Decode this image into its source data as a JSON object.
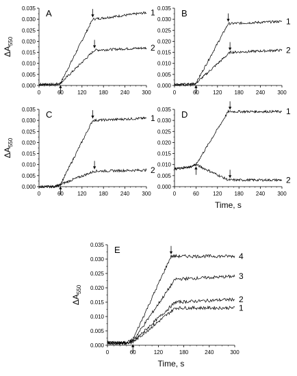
{
  "chart_data": [
    {
      "type": "line",
      "panel": "A",
      "xlim": [
        0,
        300
      ],
      "ylim": [
        0,
        0.035
      ],
      "xticks": [
        0,
        60,
        120,
        180,
        240,
        300
      ],
      "yticks": [
        "0.000",
        "0.005",
        "0.010",
        "0.015",
        "0.020",
        "0.025",
        "0.030",
        "0.035"
      ],
      "xlabel": "",
      "ylabel": "ΔA550",
      "arrows_down": [
        150,
        155
      ],
      "arrows_up": [
        60
      ],
      "series": [
        {
          "name": "1",
          "x": [
            0,
            45,
            60,
            150,
            300
          ],
          "y": [
            0.0005,
            0.0005,
            0.001,
            0.03,
            0.033
          ]
        },
        {
          "name": "2",
          "x": [
            0,
            45,
            60,
            155,
            300
          ],
          "y": [
            0.0005,
            0.0005,
            0.001,
            0.016,
            0.017
          ]
        }
      ]
    },
    {
      "type": "line",
      "panel": "B",
      "xlim": [
        0,
        300
      ],
      "ylim": [
        0,
        0.035
      ],
      "xticks": [
        0,
        60,
        120,
        180,
        240,
        300
      ],
      "yticks": [
        "0.000",
        "0.005",
        "0.010",
        "0.015",
        "0.020",
        "0.025",
        "0.030",
        "0.035"
      ],
      "xlabel": "",
      "ylabel": "",
      "arrows_down": [
        150,
        155
      ],
      "arrows_up": [
        60
      ],
      "series": [
        {
          "name": "1",
          "x": [
            0,
            45,
            60,
            150,
            300
          ],
          "y": [
            0.0005,
            0.0005,
            0.001,
            0.028,
            0.029
          ]
        },
        {
          "name": "2",
          "x": [
            0,
            45,
            60,
            155,
            300
          ],
          "y": [
            0.0005,
            0.0005,
            0.001,
            0.015,
            0.016
          ]
        }
      ]
    },
    {
      "type": "line",
      "panel": "C",
      "xlim": [
        0,
        300
      ],
      "ylim": [
        0,
        0.035
      ],
      "xticks": [
        0,
        60,
        120,
        180,
        240,
        300
      ],
      "yticks": [
        "0.000",
        "0.005",
        "0.010",
        "0.015",
        "0.020",
        "0.025",
        "0.030",
        "0.035"
      ],
      "xlabel": "",
      "ylabel": "ΔA550",
      "arrows_down": [
        150,
        155
      ],
      "arrows_up": [
        60
      ],
      "series": [
        {
          "name": "1",
          "x": [
            0,
            45,
            60,
            150,
            300
          ],
          "y": [
            0.0,
            0.0,
            0.001,
            0.03,
            0.031
          ]
        },
        {
          "name": "2",
          "x": [
            0,
            45,
            60,
            155,
            300
          ],
          "y": [
            0.0,
            0.0,
            0.001,
            0.007,
            0.0075
          ]
        }
      ]
    },
    {
      "type": "line",
      "panel": "D",
      "xlim": [
        0,
        300
      ],
      "ylim": [
        0,
        0.035
      ],
      "xticks": [
        0,
        60,
        120,
        180,
        240,
        300
      ],
      "yticks": [
        "0.000",
        "0.005",
        "0.010",
        "0.015",
        "0.020",
        "0.025",
        "0.030",
        "0.035"
      ],
      "xlabel": "Time, s",
      "ylabel": "",
      "arrows_down": [
        155
      ],
      "arrows_down_lower": [
        155
      ],
      "arrows_up": [
        60
      ],
      "series": [
        {
          "name": "1",
          "x": [
            0,
            45,
            60,
            150,
            300
          ],
          "y": [
            0.008,
            0.009,
            0.01,
            0.034,
            0.034
          ]
        },
        {
          "name": "2",
          "x": [
            0,
            45,
            60,
            150,
            300
          ],
          "y": [
            0.008,
            0.009,
            0.01,
            0.003,
            0.003
          ]
        }
      ]
    },
    {
      "type": "line",
      "panel": "E",
      "xlim": [
        0,
        300
      ],
      "ylim": [
        0,
        0.035
      ],
      "xticks": [
        0,
        60,
        120,
        180,
        240,
        300
      ],
      "yticks": [
        "0.000",
        "0.005",
        "0.010",
        "0.015",
        "0.020",
        "0.025",
        "0.030",
        "0.035"
      ],
      "xlabel": "Time, s",
      "ylabel": "ΔA550",
      "arrows_down": [
        150
      ],
      "arrows_up": [
        60
      ],
      "series": [
        {
          "name": "1",
          "x": [
            0,
            45,
            60,
            160,
            300
          ],
          "y": [
            0.0008,
            0.0008,
            0.001,
            0.013,
            0.013
          ]
        },
        {
          "name": "2",
          "x": [
            0,
            45,
            60,
            160,
            300
          ],
          "y": [
            0.0008,
            0.0008,
            0.0012,
            0.015,
            0.016
          ]
        },
        {
          "name": "3",
          "x": [
            0,
            45,
            60,
            160,
            300
          ],
          "y": [
            0.0008,
            0.0008,
            0.0015,
            0.023,
            0.024
          ]
        },
        {
          "name": "4",
          "x": [
            0,
            45,
            60,
            150,
            300
          ],
          "y": [
            0.0008,
            0.0008,
            0.002,
            0.031,
            0.031
          ]
        }
      ]
    }
  ]
}
